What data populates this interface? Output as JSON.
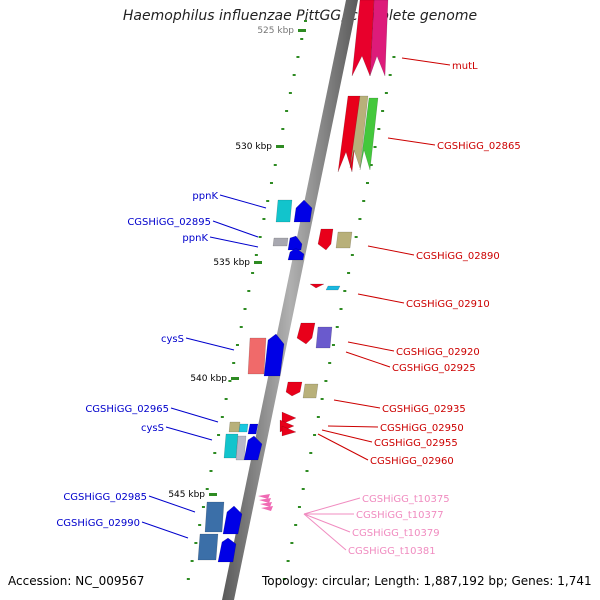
{
  "title": "Haemophilus influenzae PittGG, complete genome",
  "footer": {
    "accession": "Accession: NC_009567",
    "summary": "Topology: circular; Length: 1,887,192 bp; Genes: 1,741"
  },
  "colors": {
    "backbone": "#8e8e8e",
    "backbone_dark": "#606060",
    "tick": "#2e8b22",
    "forward_label": "#0000cc",
    "reverse_label": "#cc0000",
    "trna_label": "#f08cc0"
  },
  "scale_ticks": [
    {
      "label": "525 kbp",
      "partial": true
    },
    {
      "label": "530 kbp"
    },
    {
      "label": "535 kbp"
    },
    {
      "label": "540 kbp"
    },
    {
      "label": "545 kbp"
    }
  ],
  "reverse_labels": [
    "mutL",
    "CGSHiGG_02865",
    "CGSHiGG_02890",
    "CGSHiGG_02910",
    "CGSHiGG_02920",
    "CGSHiGG_02925",
    "CGSHiGG_02935",
    "CGSHiGG_02950",
    "CGSHiGG_02955",
    "CGSHiGG_02960"
  ],
  "forward_labels": [
    "ppnK",
    "CGSHiGG_02895",
    "ppnK",
    "cysS",
    "CGSHiGG_02965",
    "cysS",
    "CGSHiGG_02985",
    "CGSHiGG_02990"
  ],
  "trna_labels": [
    "CGSHiGG_t10375",
    "CGSHiGG_t10377",
    "CGSHiGG_t10379",
    "CGSHiGG_t10381"
  ]
}
